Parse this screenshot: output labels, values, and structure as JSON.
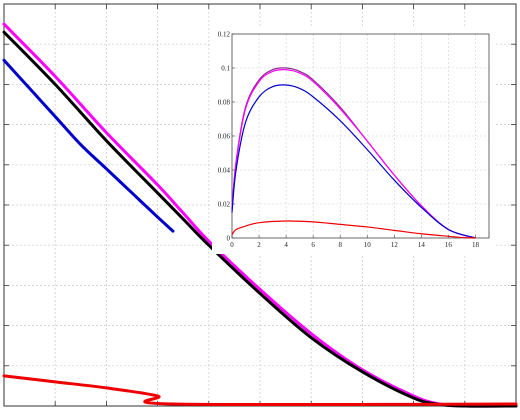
{
  "chart_data": [
    {
      "type": "line",
      "grid": true,
      "legend": "none",
      "xlim": [
        0,
        1
      ],
      "ylim": [
        0,
        1
      ],
      "series": [
        {
          "color": "#ff00ff",
          "x": [
            0,
            0.1,
            0.2,
            0.3,
            0.35,
            0.4,
            0.5,
            0.6,
            0.7,
            0.8,
            0.85,
            0.9,
            1.0
          ],
          "y": [
            0.95,
            0.82,
            0.68,
            0.55,
            0.48,
            0.41,
            0.29,
            0.18,
            0.09,
            0.025,
            0.005,
            0,
            0
          ]
        },
        {
          "color": "#000000",
          "x": [
            0,
            0.1,
            0.2,
            0.3,
            0.35,
            0.4,
            0.5,
            0.6,
            0.7,
            0.8,
            0.85,
            0.9,
            1.0
          ],
          "y": [
            0.93,
            0.8,
            0.66,
            0.53,
            0.465,
            0.4,
            0.28,
            0.17,
            0.085,
            0.02,
            0.004,
            0,
            0
          ]
        },
        {
          "color": "#0000cc",
          "x": [
            0,
            0.05,
            0.1,
            0.15,
            0.2,
            0.25,
            0.3,
            0.33
          ],
          "y": [
            0.86,
            0.79,
            0.72,
            0.65,
            0.59,
            0.53,
            0.47,
            0.435
          ]
        },
        {
          "color": "#ee0000",
          "x": [
            0,
            0.1,
            0.2,
            0.3,
            0.33,
            1.0
          ],
          "y": [
            0.075,
            0.06,
            0.045,
            0.025,
            0.005,
            0.005
          ]
        }
      ]
    },
    {
      "type": "line",
      "grid": true,
      "legend": "none",
      "xlim": [
        0,
        19
      ],
      "ylim": [
        0,
        0.12
      ],
      "x_ticks": [
        "0",
        "2",
        "4",
        "6",
        "8",
        "10",
        "12",
        "14",
        "16",
        "18"
      ],
      "y_ticks": [
        "0",
        "0.02",
        "0.04",
        "0.06",
        "0.08",
        "0.1",
        "0.12"
      ],
      "series": [
        {
          "color": "#8e2a8e",
          "x": [
            0,
            0.3,
            1,
            2,
            3,
            4,
            5,
            6,
            8,
            10,
            12,
            14,
            16,
            18
          ],
          "y": [
            0.017,
            0.045,
            0.077,
            0.093,
            0.099,
            0.1,
            0.098,
            0.093,
            0.077,
            0.057,
            0.037,
            0.019,
            0.005,
            0
          ]
        },
        {
          "color": "#ff00ff",
          "x": [
            0,
            0.3,
            1,
            2,
            3,
            4,
            5,
            6,
            8,
            10,
            12,
            14,
            16,
            18
          ],
          "y": [
            0.017,
            0.044,
            0.076,
            0.092,
            0.098,
            0.099,
            0.097,
            0.092,
            0.076,
            0.057,
            0.037,
            0.019,
            0.005,
            0
          ]
        },
        {
          "color": "#0000cc",
          "x": [
            0,
            0.3,
            1,
            2,
            3,
            4,
            5,
            6,
            8,
            10,
            12,
            14,
            16,
            18
          ],
          "y": [
            0.015,
            0.04,
            0.068,
            0.083,
            0.089,
            0.09,
            0.088,
            0.083,
            0.069,
            0.052,
            0.034,
            0.018,
            0.005,
            0
          ]
        },
        {
          "color": "#ee0000",
          "x": [
            0,
            0.3,
            1,
            2,
            4,
            6,
            8,
            10,
            12,
            14,
            16,
            17,
            18
          ],
          "y": [
            0.002,
            0.005,
            0.007,
            0.009,
            0.01,
            0.0095,
            0.008,
            0.0065,
            0.0045,
            0.0025,
            0.001,
            0.0003,
            0
          ]
        }
      ]
    }
  ]
}
